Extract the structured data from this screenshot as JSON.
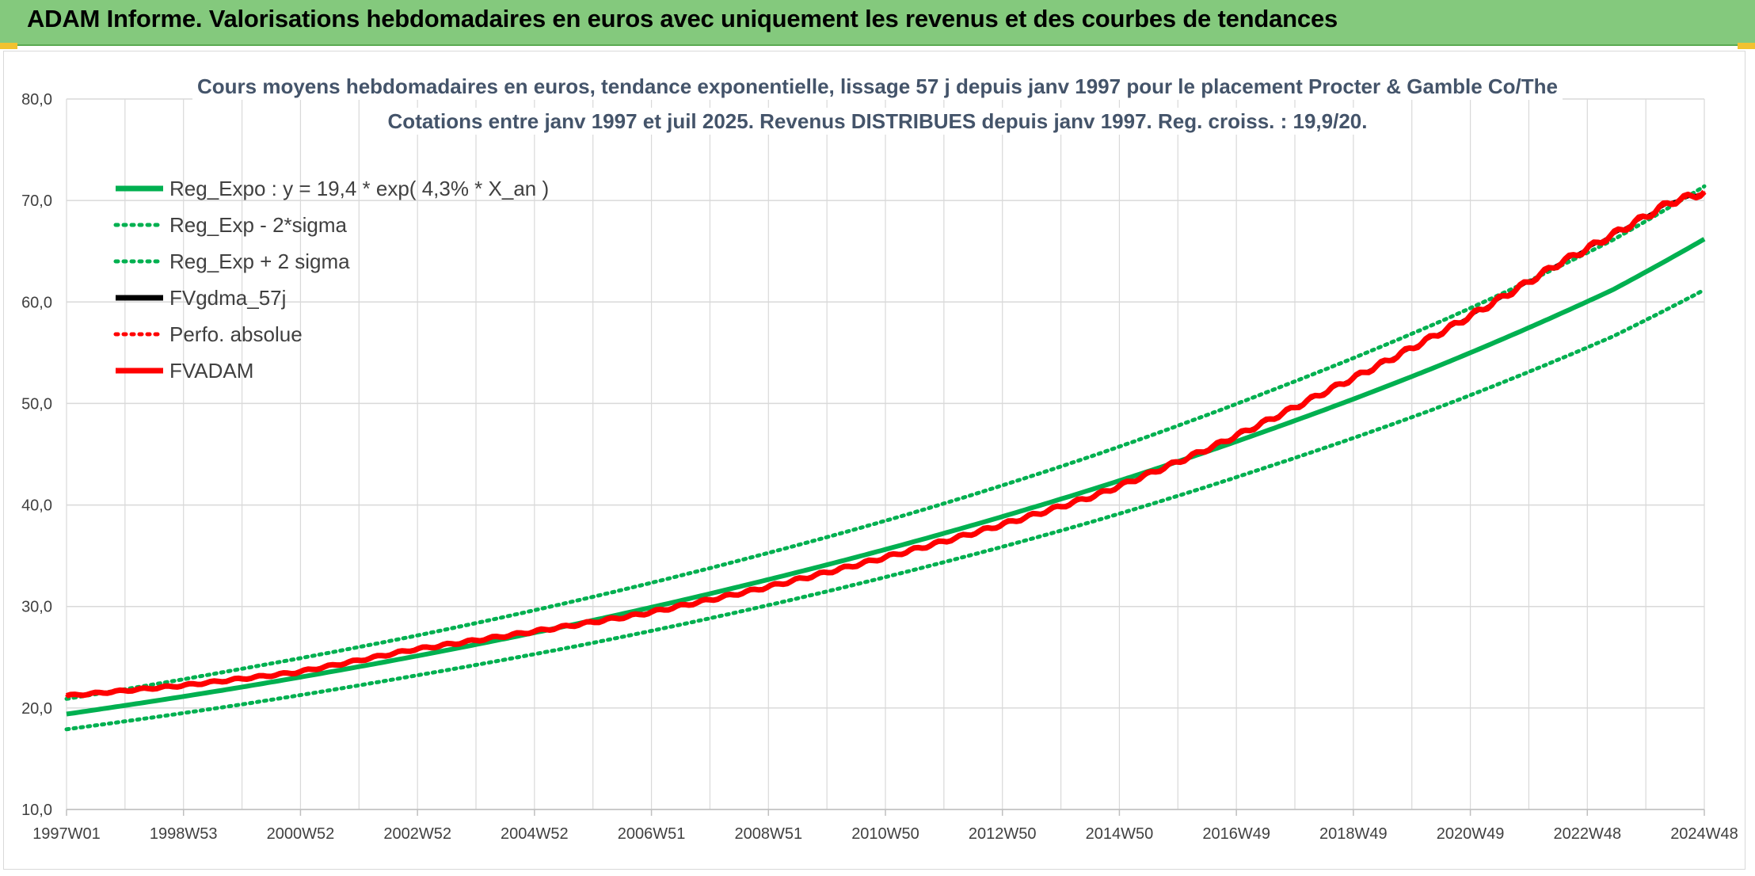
{
  "banner": {
    "title": "ADAM Informe. Valorisations hebdomadaires en euros avec uniquement les revenus et des courbes de tendances"
  },
  "colors": {
    "banner_bg": "#84c97d",
    "green": "#00b050",
    "red": "#ff0000",
    "black": "#000000",
    "grid": "#d9d9d9"
  },
  "chart_data": {
    "type": "line",
    "title_lines": [
      "Cours moyens hebdomadaires en euros, tendance exponentielle, lissage 57 j depuis janv 1997 pour le placement Procter & Gamble Co/The",
      "Cotations entre janv 1997 et juil 2025. Revenus DISTRIBUES depuis janv 1997. Reg. croiss. : 19,9/20."
    ],
    "ylim": [
      10,
      80
    ],
    "y_ticks": [
      "80,0",
      "70,0",
      "60,0",
      "50,0",
      "40,0",
      "30,0",
      "20,0",
      "10,0"
    ],
    "x_tick_labels": [
      "1997W01",
      "1998W53",
      "2000W52",
      "2002W52",
      "2004W52",
      "2006W51",
      "2008W51",
      "2010W50",
      "2012W50",
      "2014W50",
      "2016W49",
      "2018W49",
      "2020W49",
      "2022W48",
      "2024W48"
    ],
    "x_range_years": [
      1997.0,
      2025.6
    ],
    "grid": true,
    "legend_position": "top-left",
    "series": [
      {
        "name": "Reg_Expo : y = 19,4 * exp( 4,3% *  X_an )",
        "style": "solid",
        "color": "#00b050",
        "x": [
          1997.0,
          2000.0,
          2003.0,
          2006.0,
          2009.0,
          2012.0,
          2015.0,
          2018.0,
          2021.0,
          2024.0,
          2025.6
        ],
        "y": [
          19.4,
          22.0,
          25.0,
          28.4,
          32.3,
          36.7,
          41.7,
          47.4,
          53.8,
          61.2,
          66.2
        ]
      },
      {
        "name": "Reg_Exp - 2*sigma",
        "style": "dotted",
        "color": "#00b050",
        "x": [
          1997.0,
          2000.0,
          2003.0,
          2006.0,
          2009.0,
          2012.0,
          2015.0,
          2018.0,
          2021.0,
          2024.0,
          2025.6
        ],
        "y": [
          17.9,
          20.3,
          23.1,
          26.2,
          29.8,
          33.9,
          38.5,
          43.8,
          49.7,
          56.6,
          61.2
        ]
      },
      {
        "name": "Reg_Exp + 2 sigma",
        "style": "dotted",
        "color": "#00b050",
        "x": [
          1997.0,
          2000.0,
          2003.0,
          2006.0,
          2009.0,
          2012.0,
          2015.0,
          2018.0,
          2021.0,
          2024.0,
          2025.6
        ],
        "y": [
          20.9,
          23.8,
          27.0,
          30.7,
          34.9,
          39.6,
          45.0,
          51.2,
          58.1,
          66.1,
          71.4
        ]
      },
      {
        "name": "FVgdma_57j",
        "style": "solid",
        "color": "#000000",
        "x": [
          1997.0,
          1999.0,
          2001.0,
          2003.0,
          2005.0,
          2007.0,
          2009.0,
          2011.0,
          2013.0,
          2015.0,
          2017.0,
          2019.0,
          2021.0,
          2023.0,
          2025.0,
          2025.6
        ],
        "y": [
          21.2,
          22.2,
          23.5,
          25.7,
          27.4,
          29.2,
          31.6,
          34.4,
          37.5,
          41.0,
          45.7,
          51.2,
          57.0,
          63.6,
          69.8,
          70.8
        ]
      },
      {
        "name": "Perfo. absolue",
        "style": "dotted",
        "color": "#ff0000",
        "x": [
          1997.0,
          1999.0,
          2001.0,
          2003.0,
          2005.0,
          2007.0,
          2009.0,
          2011.0,
          2013.0,
          2015.0,
          2017.0,
          2019.0,
          2021.0,
          2023.0,
          2025.0,
          2025.6
        ],
        "y": [
          21.2,
          22.2,
          23.5,
          25.7,
          27.4,
          29.2,
          31.6,
          34.4,
          37.5,
          41.0,
          45.7,
          51.2,
          57.0,
          63.6,
          69.8,
          70.8
        ]
      },
      {
        "name": "FVADAM",
        "style": "solid",
        "color": "#ff0000",
        "x": [
          1997.0,
          1999.0,
          2001.0,
          2003.0,
          2005.0,
          2007.0,
          2009.0,
          2011.0,
          2013.0,
          2015.0,
          2017.0,
          2019.0,
          2021.0,
          2023.0,
          2025.0,
          2025.6
        ],
        "y": [
          21.2,
          22.2,
          23.5,
          25.7,
          27.4,
          29.2,
          31.6,
          34.4,
          37.5,
          41.0,
          45.7,
          51.2,
          57.0,
          63.6,
          69.8,
          70.8
        ]
      }
    ]
  }
}
